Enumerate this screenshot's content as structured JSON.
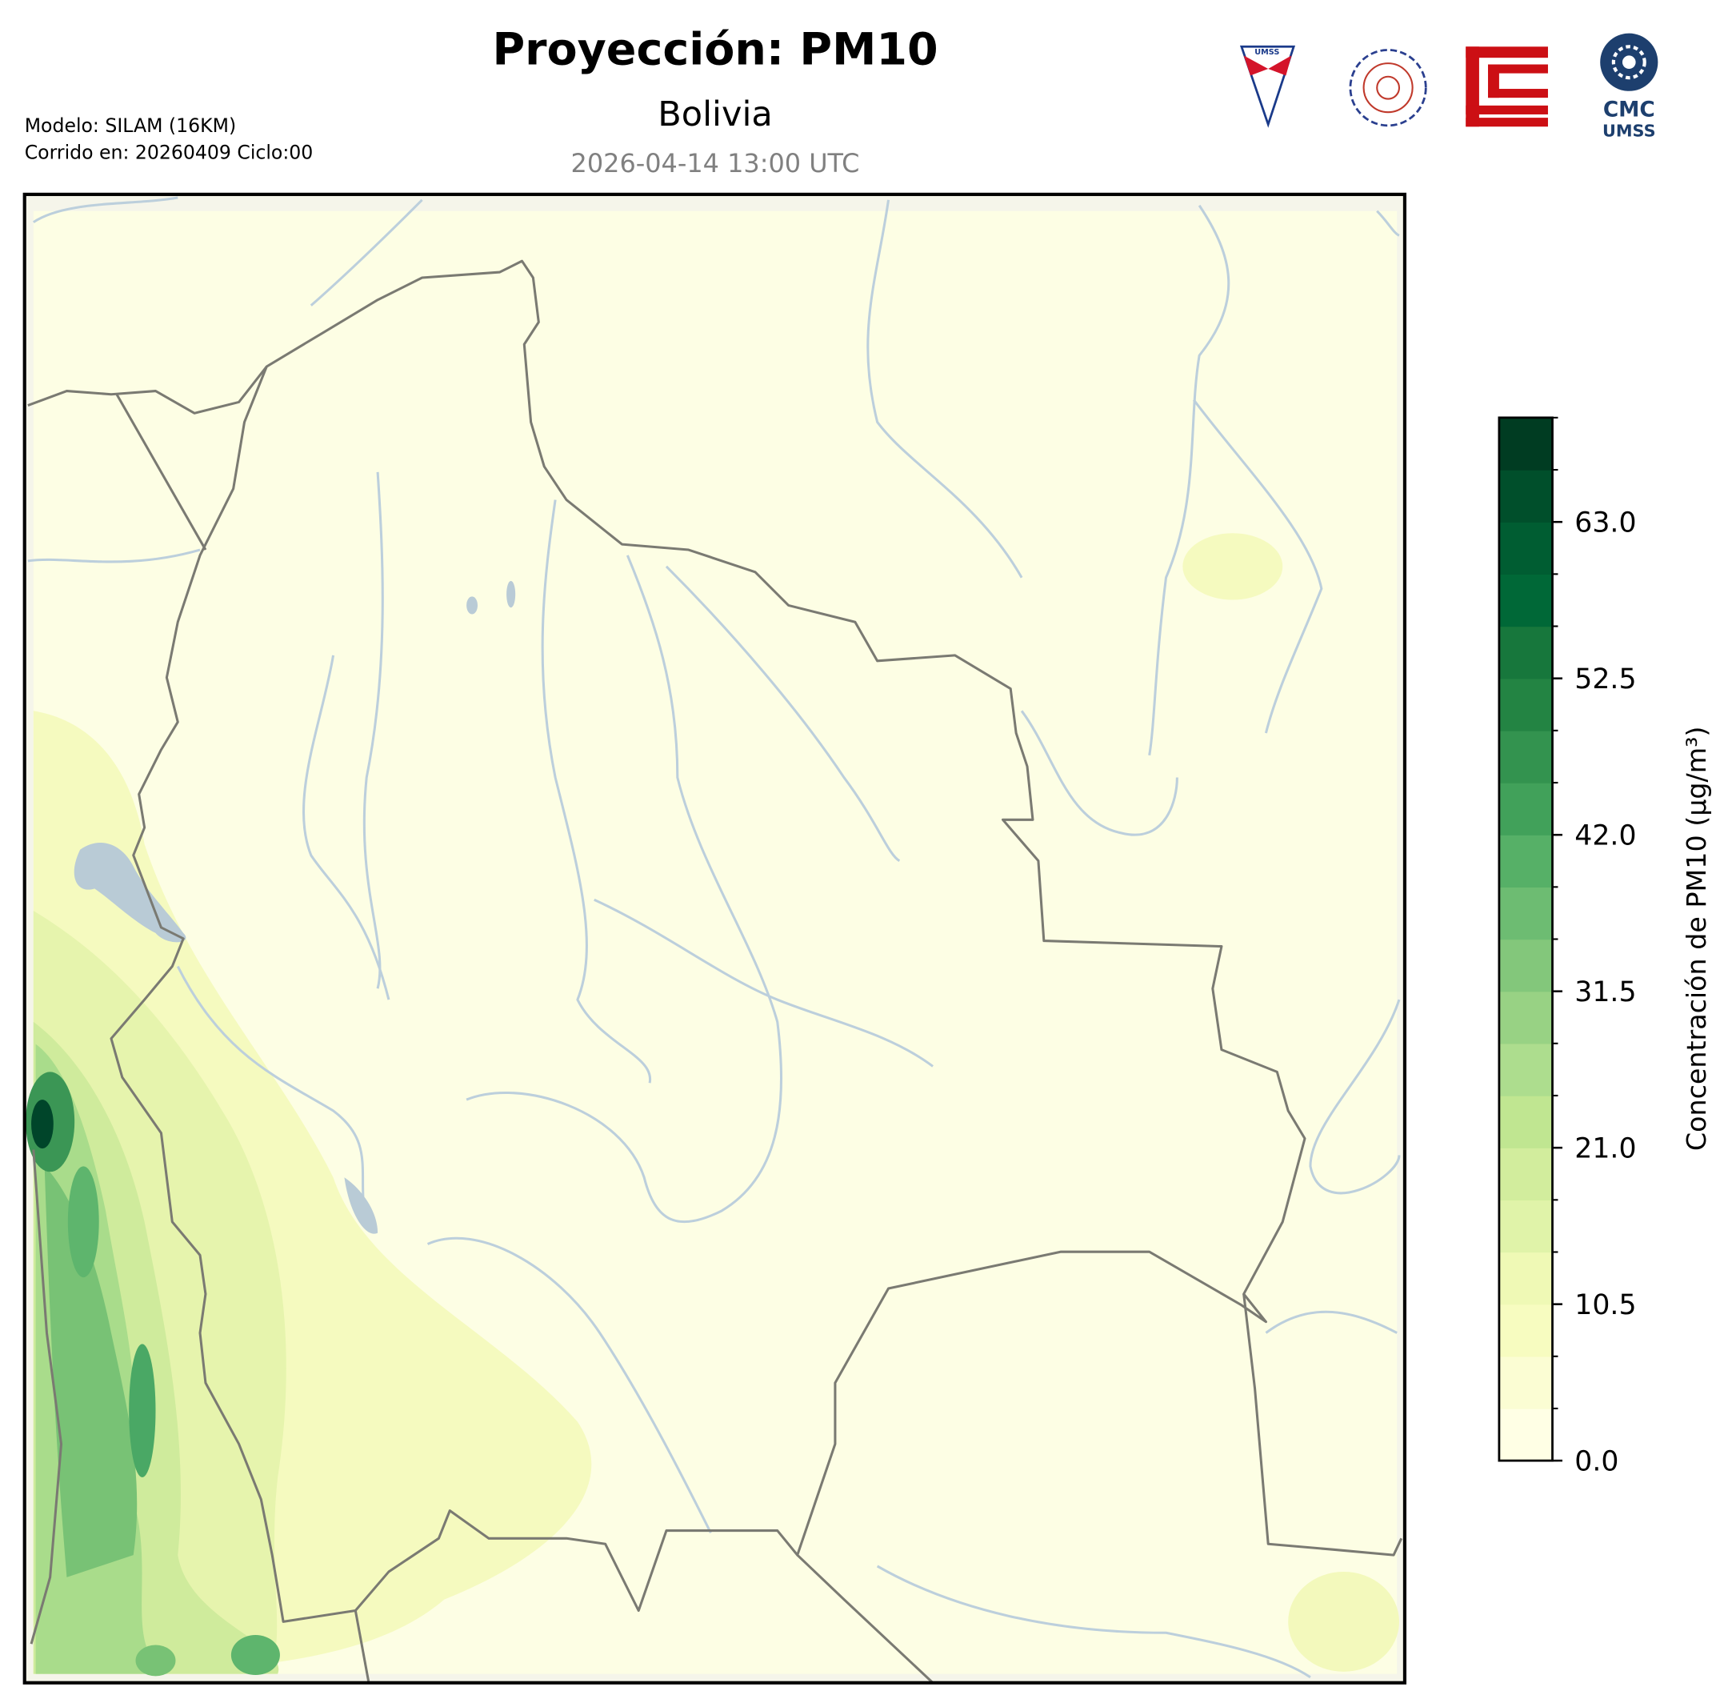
{
  "header": {
    "title": "Proyección: PM10",
    "subtitle": "Bolivia",
    "datetime": "2026-04-14 13:00 UTC",
    "model": "Modelo: SILAM (16KM)",
    "run": "Corrido en: 20260409 Ciclo:00"
  },
  "logos": {
    "cmc": "CMC",
    "umss": "UMSS",
    "badge": "UMSS"
  },
  "colorbar": {
    "label": "Concentración de PM10 (µg/m³)",
    "lim": [
      0,
      70
    ],
    "levels": [
      0,
      3.5,
      7,
      10.5,
      14,
      17.5,
      21,
      24.5,
      28,
      31.5,
      35,
      38.5,
      42,
      45.5,
      49,
      52.5,
      56,
      59.5,
      63,
      66.5,
      70
    ],
    "colors": [
      "#ffffe5",
      "#fbfdd3",
      "#f7fcc0",
      "#eff9b5",
      "#e0f3a9",
      "#d2ed9d",
      "#c0e691",
      "#addd8e",
      "#98d284",
      "#83c77b",
      "#6dbc72",
      "#56b067",
      "#41a15a",
      "#33934f",
      "#238443",
      "#17773c",
      "#006837",
      "#005d32",
      "#004f2b",
      "#003c22"
    ],
    "ticks": [
      {
        "value": 0,
        "label": "0.0"
      },
      {
        "value": 10.5,
        "label": "10.5"
      },
      {
        "value": 21,
        "label": "21.0"
      },
      {
        "value": 31.5,
        "label": "31.5"
      },
      {
        "value": 42,
        "label": "42.0"
      },
      {
        "value": 52.5,
        "label": "52.5"
      },
      {
        "value": 63,
        "label": "63.0"
      }
    ]
  }
}
